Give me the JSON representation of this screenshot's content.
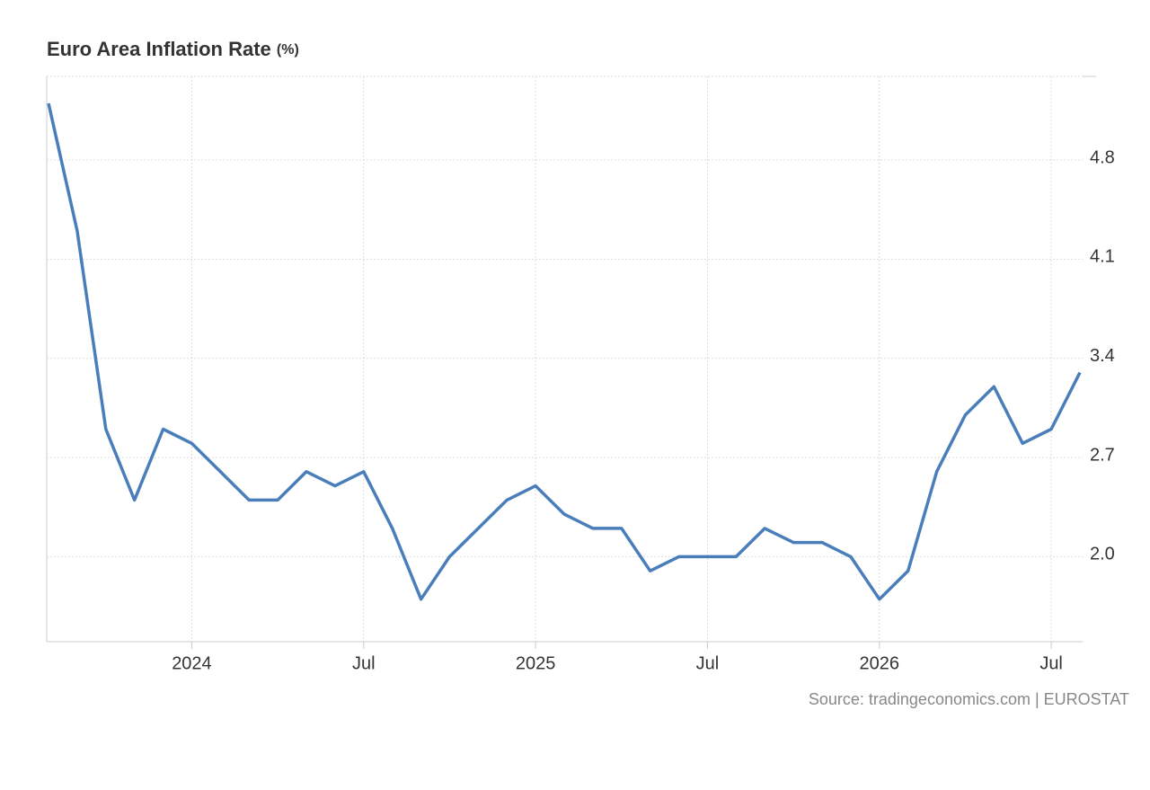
{
  "chart_data": {
    "type": "line",
    "title": "Euro Area Inflation Rate",
    "title_unit": "(%)",
    "source": "Source: tradingeconomics.com | EUROSTAT",
    "x": [
      "2023-08",
      "2023-09",
      "2023-10",
      "2023-11",
      "2023-12",
      "2024-01",
      "2024-02",
      "2024-03",
      "2024-04",
      "2024-05",
      "2024-06",
      "2024-07",
      "2024-08",
      "2024-09",
      "2024-10",
      "2024-11",
      "2024-12",
      "2025-01",
      "2025-02",
      "2025-03",
      "2025-04",
      "2025-05",
      "2025-06",
      "2025-07",
      "2025-08",
      "2025-09",
      "2025-10",
      "2025-11",
      "2025-12",
      "2026-01",
      "2026-02",
      "2026-03",
      "2026-04",
      "2026-05",
      "2026-06",
      "2026-07",
      "2026-08"
    ],
    "series": [
      {
        "name": "Inflation Rate",
        "color": "#4a7ebb",
        "values": [
          5.2,
          4.3,
          2.9,
          2.4,
          2.9,
          2.8,
          2.6,
          2.4,
          2.4,
          2.6,
          2.5,
          2.6,
          2.2,
          1.7,
          2.0,
          2.2,
          2.4,
          2.5,
          2.3,
          2.2,
          2.2,
          1.9,
          2.0,
          2.0,
          2.0,
          2.2,
          2.1,
          2.1,
          2.0,
          1.7,
          1.9,
          2.6,
          3.0,
          3.2,
          2.8,
          2.9,
          3.3
        ]
      }
    ],
    "xlim": [
      "2023-08",
      "2026-08"
    ],
    "xticks": [
      {
        "value": "2024-01",
        "label": "2024"
      },
      {
        "value": "2024-07",
        "label": "Jul"
      },
      {
        "value": "2025-01",
        "label": "2025"
      },
      {
        "value": "2025-07",
        "label": "Jul"
      },
      {
        "value": "2026-01",
        "label": "2026"
      },
      {
        "value": "2026-07",
        "label": "Jul"
      }
    ],
    "ylim": [
      1.4,
      5.39
    ],
    "yticks": [
      {
        "value": 2.0,
        "label": "2.0"
      },
      2.7,
      3.4,
      4.1,
      4.8
    ],
    "grid": true,
    "y_axis_side": "right"
  }
}
